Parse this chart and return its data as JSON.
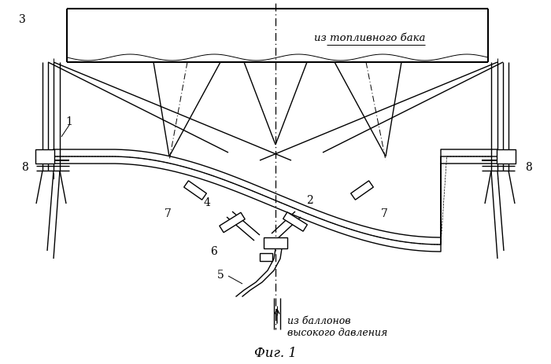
{
  "title": "Фиг. 1",
  "label_iz_topliva": "из топливного бака",
  "label_iz_ballonov": "из баллонов\nвысокого давления",
  "bg_color": "#ffffff",
  "line_color": "#000000",
  "fig_label_fontsize": 12,
  "annotation_fontsize": 9.5
}
